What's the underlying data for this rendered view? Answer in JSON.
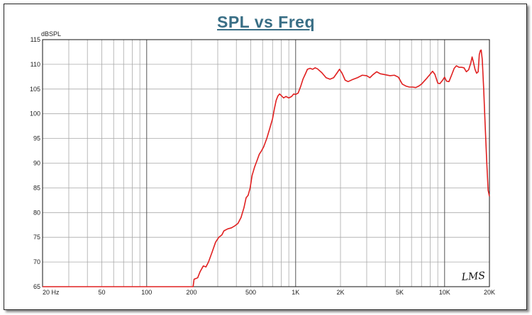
{
  "chart_data": {
    "type": "line",
    "title": "SPL vs Freq",
    "ylabel": "dBSPL",
    "xscale": "log",
    "xlim": [
      20,
      20000
    ],
    "ylim": [
      65,
      115
    ],
    "yticks": [
      "115",
      "110",
      "105",
      "100",
      "95",
      "90",
      "85",
      "80",
      "75",
      "70",
      "65"
    ],
    "xticks": [
      {
        "label": "20  Hz",
        "value": 20
      },
      {
        "label": "50",
        "value": 50
      },
      {
        "label": "100",
        "value": 100
      },
      {
        "label": "200",
        "value": 200
      },
      {
        "label": "500",
        "value": 500
      },
      {
        "label": "1K",
        "value": 1000
      },
      {
        "label": "2K",
        "value": 2000
      },
      {
        "label": "5K",
        "value": 5000
      },
      {
        "label": "10K",
        "value": 10000
      },
      {
        "label": "20K",
        "value": 20000
      }
    ],
    "grid": true,
    "series": [
      {
        "color": "#e02020",
        "points": [
          [
            20,
            65
          ],
          [
            205,
            65
          ],
          [
            208,
            66.5
          ],
          [
            220,
            66.8
          ],
          [
            228,
            68
          ],
          [
            240,
            69.2
          ],
          [
            250,
            69
          ],
          [
            260,
            70
          ],
          [
            275,
            72
          ],
          [
            290,
            74
          ],
          [
            305,
            75
          ],
          [
            320,
            75.5
          ],
          [
            330,
            76.3
          ],
          [
            350,
            76.7
          ],
          [
            370,
            76.9
          ],
          [
            390,
            77.3
          ],
          [
            410,
            77.8
          ],
          [
            430,
            79
          ],
          [
            450,
            81
          ],
          [
            465,
            83
          ],
          [
            480,
            83.5
          ],
          [
            495,
            85
          ],
          [
            510,
            87.5
          ],
          [
            530,
            89.2
          ],
          [
            550,
            90.5
          ],
          [
            570,
            91.8
          ],
          [
            590,
            92.5
          ],
          [
            610,
            93.3
          ],
          [
            640,
            95
          ],
          [
            670,
            97
          ],
          [
            700,
            99
          ],
          [
            720,
            101
          ],
          [
            740,
            102.7
          ],
          [
            760,
            103.6
          ],
          [
            780,
            104
          ],
          [
            800,
            103.7
          ],
          [
            830,
            103.2
          ],
          [
            860,
            103.5
          ],
          [
            900,
            103.2
          ],
          [
            940,
            103.5
          ],
          [
            970,
            104
          ],
          [
            1000,
            103.9
          ],
          [
            1040,
            104.2
          ],
          [
            1080,
            105.5
          ],
          [
            1120,
            107
          ],
          [
            1160,
            108
          ],
          [
            1200,
            109
          ],
          [
            1250,
            109.2
          ],
          [
            1300,
            109
          ],
          [
            1350,
            109.3
          ],
          [
            1400,
            109.1
          ],
          [
            1500,
            108.3
          ],
          [
            1600,
            107.3
          ],
          [
            1700,
            107
          ],
          [
            1800,
            107.3
          ],
          [
            1900,
            108.3
          ],
          [
            1970,
            109
          ],
          [
            2050,
            108.2
          ],
          [
            2150,
            106.8
          ],
          [
            2250,
            106.5
          ],
          [
            2400,
            106.9
          ],
          [
            2600,
            107.3
          ],
          [
            2800,
            107.8
          ],
          [
            3000,
            107.7
          ],
          [
            3150,
            107.3
          ],
          [
            3300,
            107.9
          ],
          [
            3500,
            108.5
          ],
          [
            3700,
            108.1
          ],
          [
            4000,
            107.9
          ],
          [
            4300,
            107.7
          ],
          [
            4600,
            107.8
          ],
          [
            4900,
            107.4
          ],
          [
            5200,
            106
          ],
          [
            5500,
            105.6
          ],
          [
            5800,
            105.4
          ],
          [
            6100,
            105.4
          ],
          [
            6400,
            105.3
          ],
          [
            6700,
            105.6
          ],
          [
            7000,
            106
          ],
          [
            7500,
            107
          ],
          [
            8000,
            108
          ],
          [
            8300,
            108.6
          ],
          [
            8600,
            108
          ],
          [
            9000,
            106.2
          ],
          [
            9300,
            106.1
          ],
          [
            9700,
            106.8
          ],
          [
            10000,
            107.4
          ],
          [
            10300,
            106.6
          ],
          [
            10700,
            106.5
          ],
          [
            11200,
            108
          ],
          [
            11600,
            109.2
          ],
          [
            12000,
            109.7
          ],
          [
            12500,
            109.4
          ],
          [
            13000,
            109.4
          ],
          [
            13500,
            109.3
          ],
          [
            14000,
            108.5
          ],
          [
            14500,
            108.9
          ],
          [
            15000,
            110.3
          ],
          [
            15300,
            111.5
          ],
          [
            15600,
            110.5
          ],
          [
            16000,
            109
          ],
          [
            16400,
            108.2
          ],
          [
            16800,
            108.5
          ],
          [
            17100,
            112
          ],
          [
            17400,
            112.8
          ],
          [
            17600,
            112.9
          ],
          [
            17900,
            111
          ],
          [
            18300,
            105
          ],
          [
            18700,
            98
          ],
          [
            19200,
            90
          ],
          [
            19600,
            84.5
          ],
          [
            20000,
            83.3
          ]
        ]
      }
    ]
  },
  "logo_text": "LMS"
}
